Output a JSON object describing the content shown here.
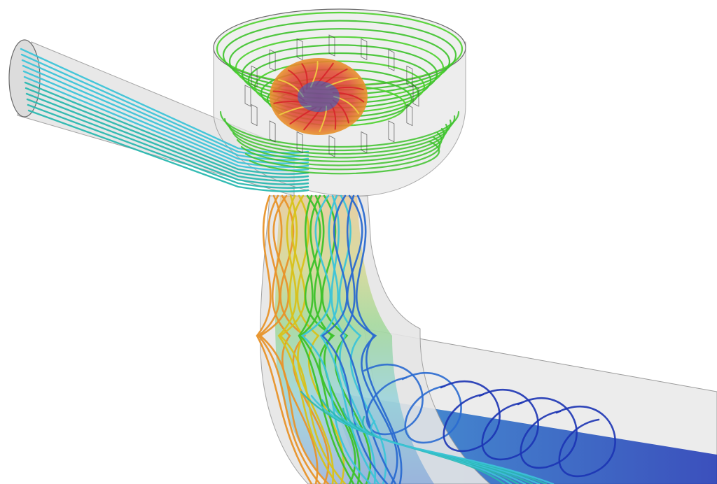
{
  "image": {
    "description_kind": "cfd-streamline-render",
    "background": "#ffffff"
  },
  "palette": {
    "red": "#d8242a",
    "orange": "#e8942a",
    "yellow": "#d8c21a",
    "green": "#3cc22a",
    "teal": "#2ab8b0",
    "cyan": "#3cc4d8",
    "blue": "#2a6ad0",
    "darkblue": "#1c34b4",
    "shell_fill": "#e6e6e6",
    "shell_stroke": "#9a9a9a"
  },
  "parts": [
    {
      "name": "inlet-pipe"
    },
    {
      "name": "spiral-casing"
    },
    {
      "name": "runner"
    },
    {
      "name": "draft-tube"
    },
    {
      "name": "outlet-channel"
    }
  ]
}
